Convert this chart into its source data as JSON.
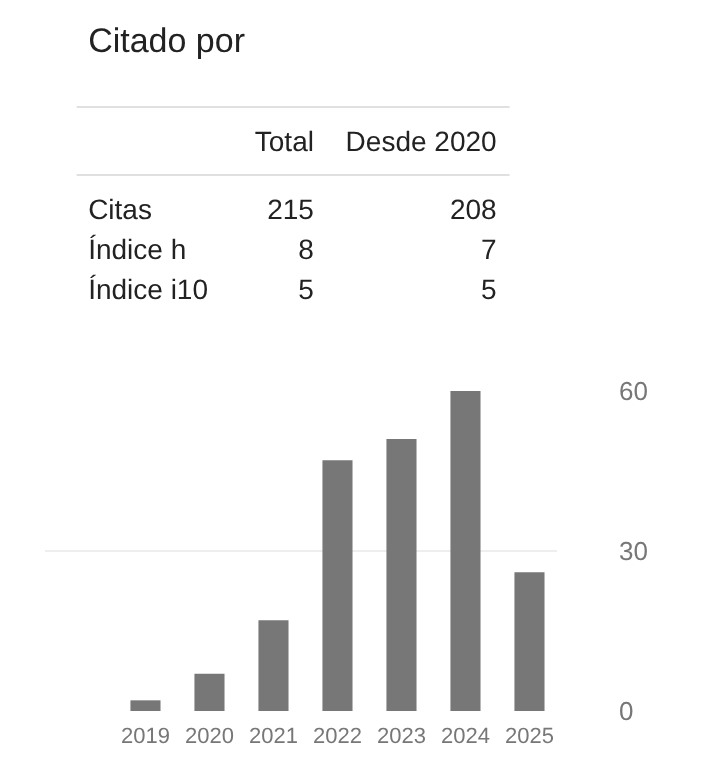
{
  "chart_data": [
    {
      "type": "other",
      "title": "Citado por",
      "data_labels": true,
      "categories": [
        "Citas",
        "Índice h",
        "Índice i10"
      ],
      "series": [
        {
          "name": "Total",
          "values": [
            215,
            8,
            5
          ]
        },
        {
          "name": "Desde 2020",
          "values": [
            208,
            7,
            5
          ]
        }
      ]
    },
    {
      "type": "bar",
      "categories": [
        "2019",
        "2020",
        "2021",
        "2022",
        "2023",
        "2024",
        "2025"
      ],
      "values": [
        2,
        7,
        17,
        47,
        51,
        60,
        26
      ],
      "color": "#777777",
      "ylim": [
        0,
        60
      ],
      "yticks": [
        0,
        30,
        60
      ],
      "grid": "y"
    }
  ]
}
